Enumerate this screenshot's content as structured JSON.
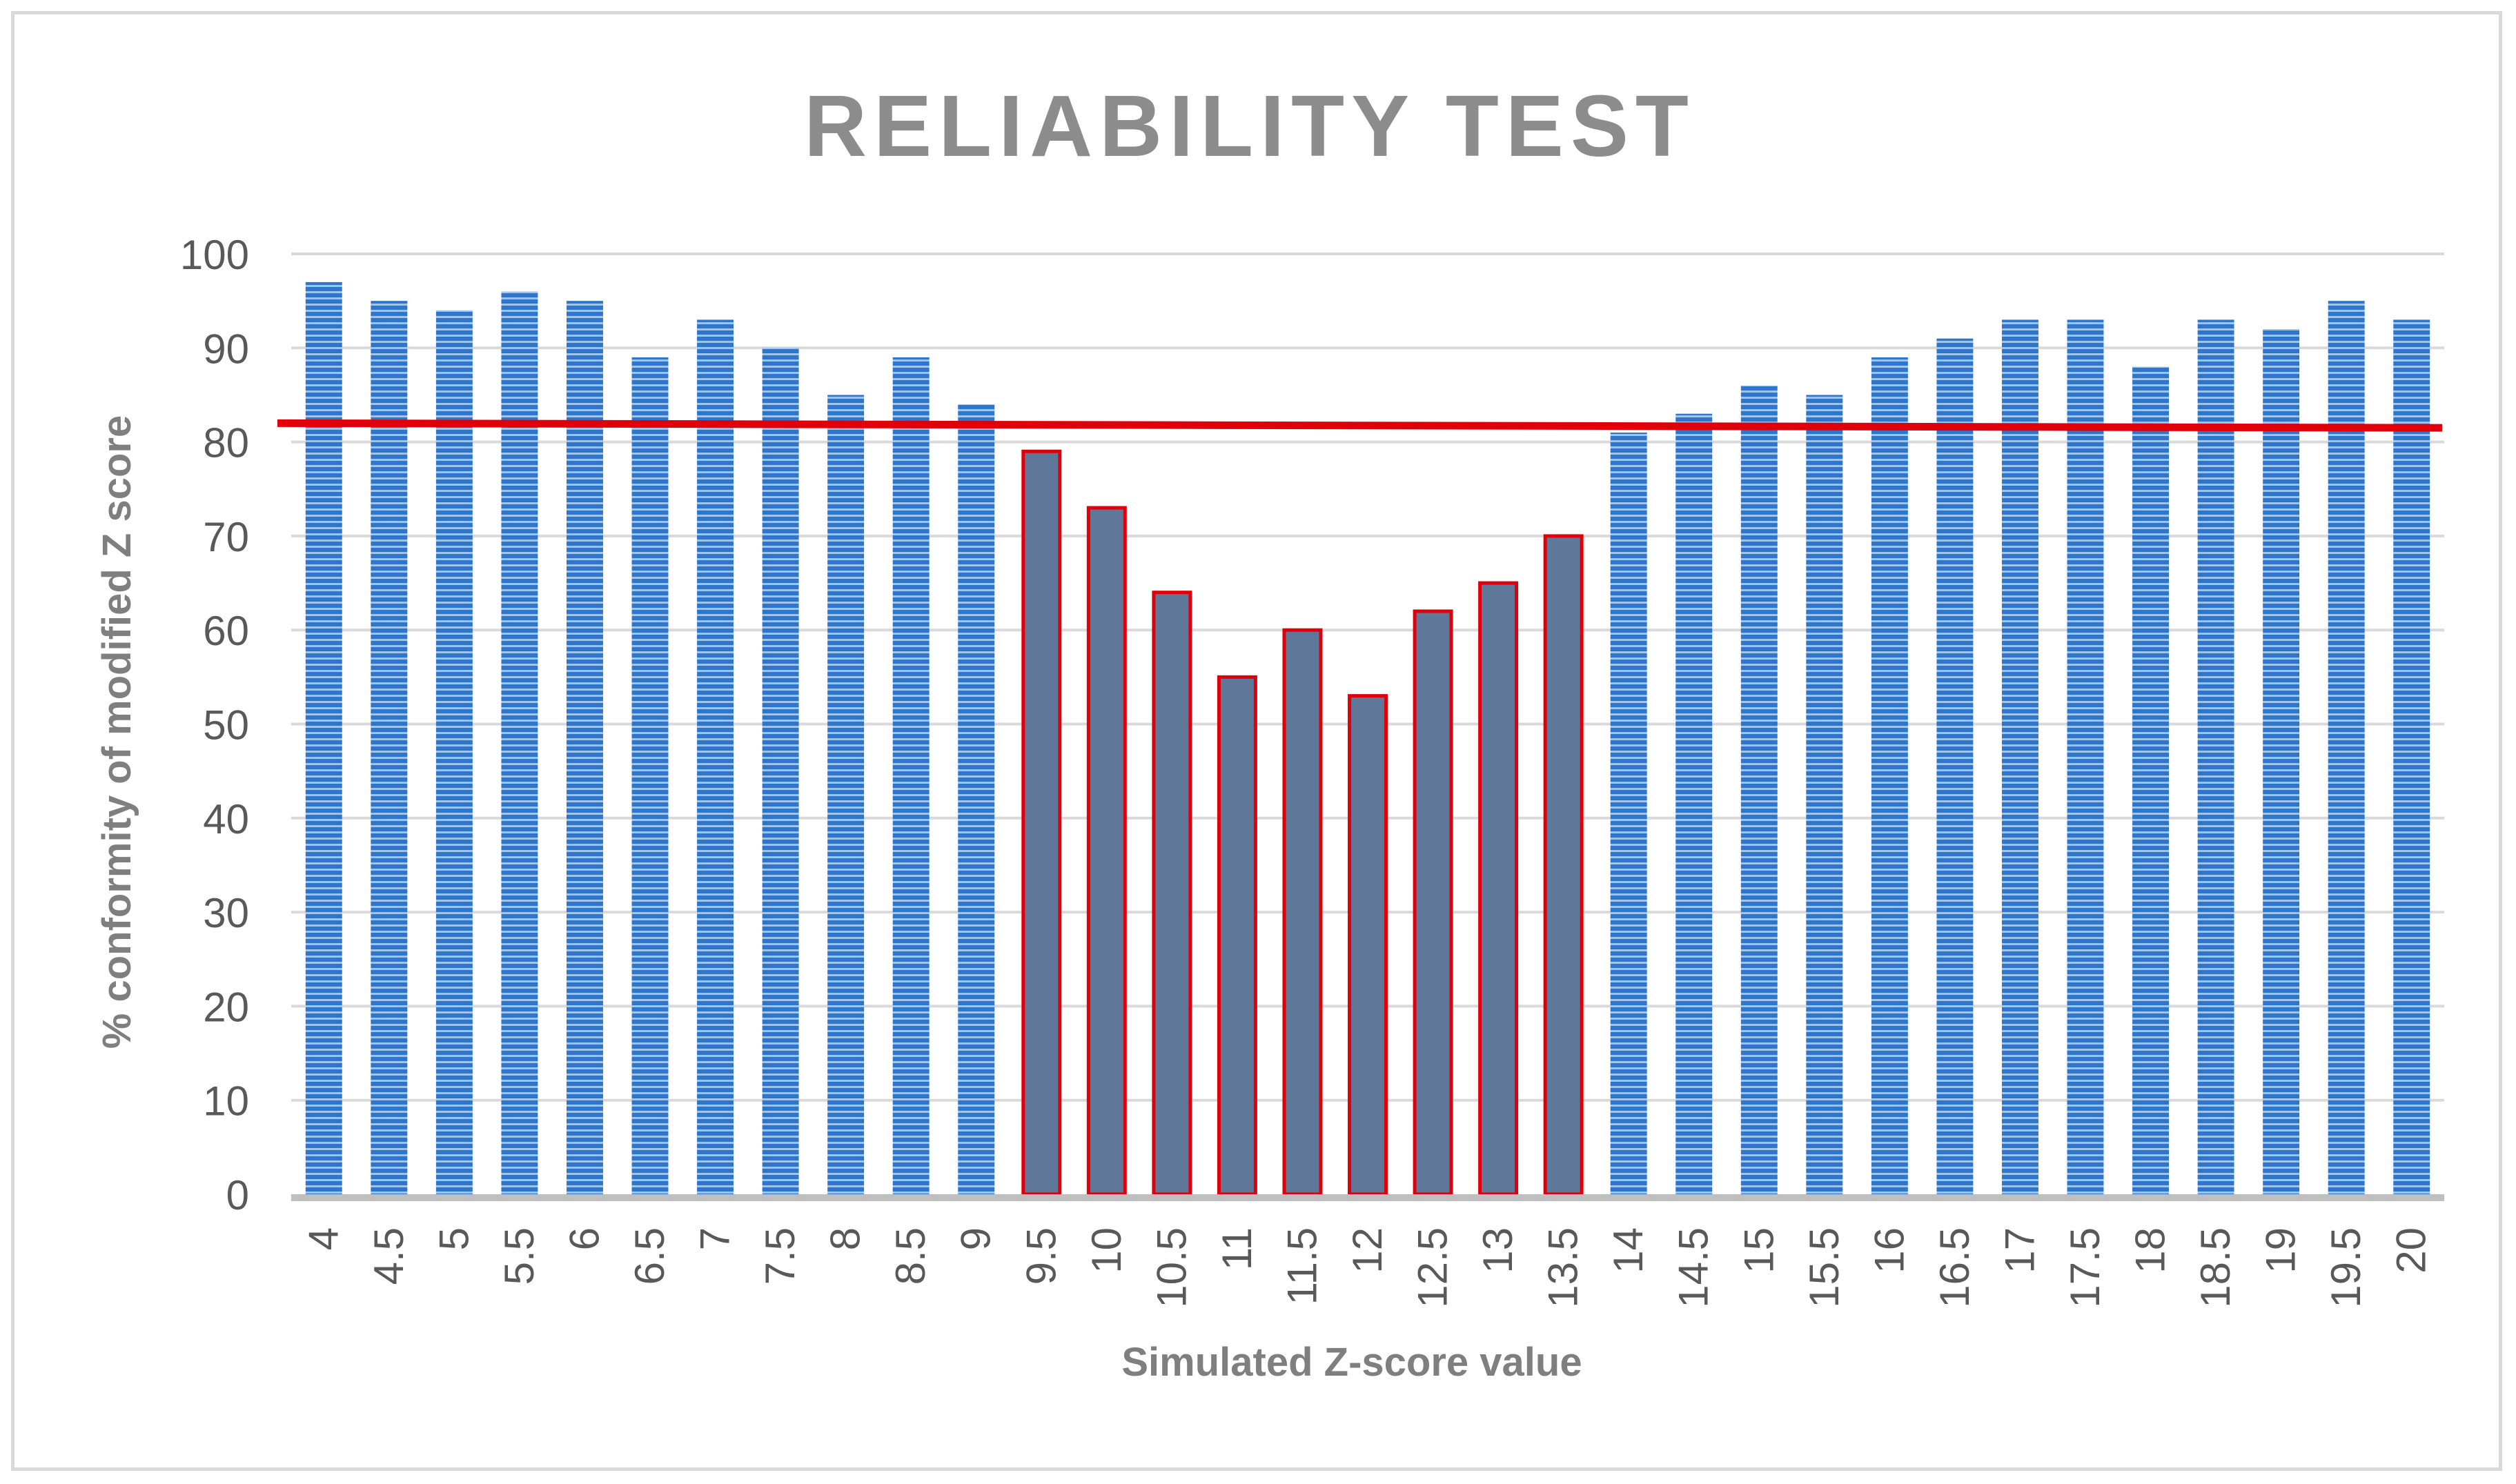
{
  "chart_data": {
    "type": "bar",
    "title": "RELIABILITY TEST",
    "xlabel": "Simulated Z-score value",
    "ylabel": "% conformity of modified Z score",
    "ylim": [
      0,
      100
    ],
    "yticks": [
      0,
      10,
      20,
      30,
      40,
      50,
      60,
      70,
      80,
      90,
      100
    ],
    "grid": true,
    "legend": "none",
    "categories": [
      "4",
      "4.5",
      "5",
      "5.5",
      "6",
      "6.5",
      "7",
      "7.5",
      "8",
      "8.5",
      "9",
      "9.5",
      "10",
      "10.5",
      "11",
      "11.5",
      "12",
      "12.5",
      "13",
      "13.5",
      "14",
      "14.5",
      "15",
      "15.5",
      "16",
      "16.5",
      "17",
      "17.5",
      "18",
      "18.5",
      "19",
      "19.5",
      "20"
    ],
    "values": [
      97,
      95,
      94,
      96,
      95,
      89,
      93,
      90,
      85,
      89,
      84,
      79,
      73,
      64,
      55,
      60,
      53,
      62,
      65,
      70,
      81,
      83,
      86,
      85,
      89,
      91,
      93,
      93,
      88,
      93,
      92,
      95,
      93
    ],
    "highlighted_categories": [
      "9.5",
      "10",
      "10.5",
      "11",
      "11.5",
      "12",
      "12.5",
      "13",
      "13.5"
    ],
    "threshold_line": {
      "from": 82,
      "to": 81.5
    },
    "colors": {
      "bar": "#2f75c9",
      "bar_stripe": "#9dc3ef",
      "highlight_fill": "#5f7899",
      "highlight_border": "#e0000a",
      "threshold": "#e0000a",
      "grid": "#d9d9d9",
      "axis": "#bfbfbf"
    }
  }
}
